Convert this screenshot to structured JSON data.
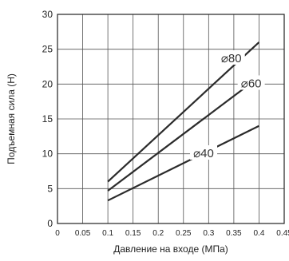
{
  "chart_data": {
    "type": "line",
    "xlabel": "Давление на входе (МПа)",
    "ylabel": "Подъемная сила (Н)",
    "xlim": [
      0,
      0.45
    ],
    "ylim": [
      0,
      30
    ],
    "x_ticks": [
      "0",
      "0.05",
      "0.1",
      "0.15",
      "0.2",
      "0.25",
      "0.3",
      "0.35",
      "0.4",
      "0.45"
    ],
    "y_ticks": [
      "0",
      "5",
      "10",
      "15",
      "20",
      "25",
      "30"
    ],
    "grid": true,
    "series": [
      {
        "name": "⌀80",
        "x": [
          0.1,
          0.4
        ],
        "y": [
          6,
          26
        ]
      },
      {
        "name": "⌀60",
        "x": [
          0.1,
          0.4
        ],
        "y": [
          4.7,
          21
        ]
      },
      {
        "name": "⌀40",
        "x": [
          0.1,
          0.4
        ],
        "y": [
          3.3,
          14
        ]
      }
    ]
  }
}
